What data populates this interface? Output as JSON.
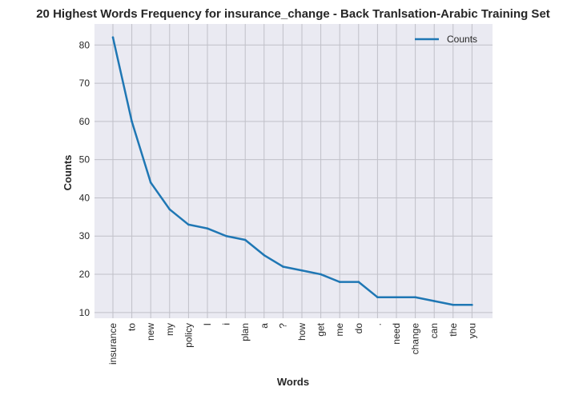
{
  "chart_data": {
    "type": "line",
    "title": "20 Highest Words Frequency for insurance_change - Back Tranlsation-Arabic Training Set",
    "xlabel": "Words",
    "ylabel": "Counts",
    "categories": [
      "insurance",
      "to",
      "new",
      "my",
      "policy",
      "I",
      "i",
      "plan",
      "a",
      "?",
      "how",
      "get",
      "me",
      "do",
      ".",
      "need",
      "change",
      "can",
      "the",
      "you"
    ],
    "series": [
      {
        "name": "Counts",
        "values": [
          82,
          60,
          44,
          37,
          33,
          32,
          30,
          29,
          25,
          22,
          21,
          20,
          18,
          18,
          14,
          14,
          14,
          13,
          12,
          12
        ]
      }
    ],
    "ylim": [
      8.5,
      85.5
    ],
    "yticks": [
      10,
      20,
      30,
      40,
      50,
      60,
      70,
      80
    ],
    "grid": true,
    "legend": "top-right",
    "colors": {
      "line": "#1f77b4",
      "plot_bg": "#eaeaf2",
      "grid": "#c0c0c8"
    }
  }
}
